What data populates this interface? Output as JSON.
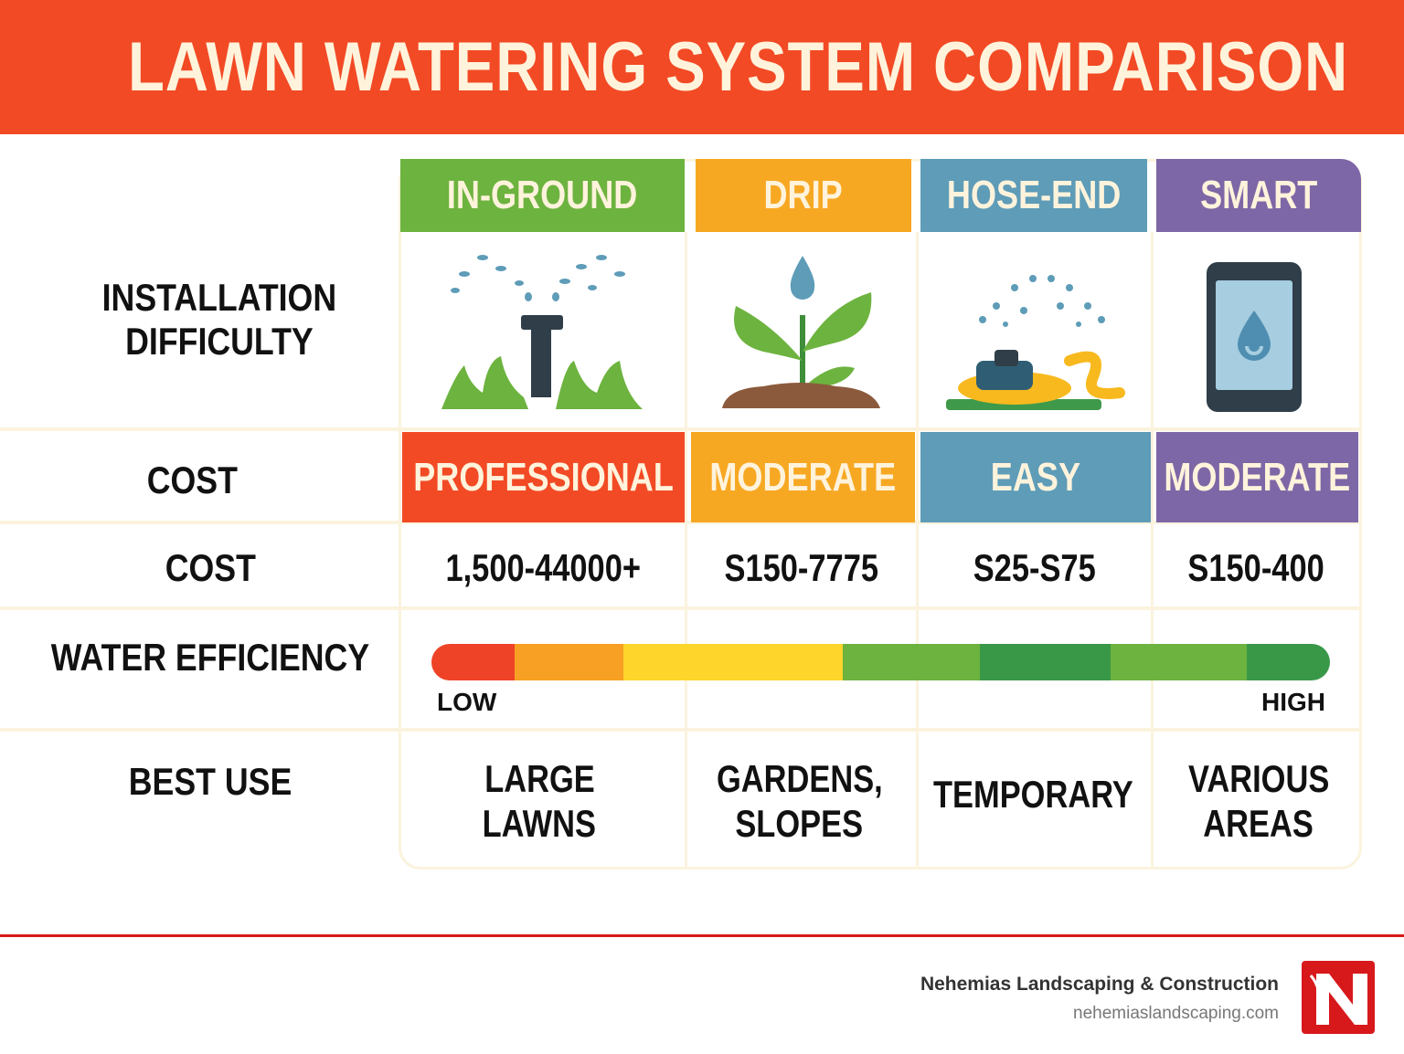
{
  "title": "LAWN WATERING SYSTEM COMPARISON",
  "columns": [
    {
      "label": "IN-GROUND",
      "color": "#6DB33F",
      "icon": "sprinkler-icon"
    },
    {
      "label": "DRIP",
      "color": "#F7A823",
      "icon": "plant-drip-icon"
    },
    {
      "label": "HOSE-END",
      "color": "#5E9CB8",
      "icon": "hose-sprinkler-icon"
    },
    {
      "label": "SMART",
      "color": "#7E67A6",
      "icon": "smartphone-water-icon"
    }
  ],
  "rows": {
    "difficulty_label": "INSTALLATION DIFFICULTY",
    "difficulty_label_line1": "INSTALLATION",
    "difficulty_label_line2": "DIFFICULTY",
    "difficulty": [
      {
        "value": "PROFESSIONAL",
        "color": "#F24A25"
      },
      {
        "value": "MODERATE",
        "color": "#F7A823"
      },
      {
        "value": "EASY",
        "color": "#5E9CB8"
      },
      {
        "value": "MODERATE",
        "color": "#7E67A6"
      }
    ],
    "cost_label_1": "COST",
    "cost_label_2": "COST",
    "cost": [
      "1,500-44000+",
      "S150-7775",
      "S25-S75",
      "S150-400"
    ],
    "efficiency_label": "WATER EFFICIENCY",
    "efficiency_low": "LOW",
    "efficiency_high": "HIGH",
    "efficiency_scale_colors": [
      "#EE4327",
      "#F7A023",
      "#FDD52B",
      "#6DB33F",
      "#389848",
      "#6DB33F",
      "#389848"
    ],
    "best_use_label": "BEST USE",
    "best_use": [
      {
        "line1": "LARGE",
        "line2": "LAWNS"
      },
      {
        "line1": "GARDENS,",
        "line2": "SLOPES"
      },
      {
        "line1": "TEMPORARY",
        "line2": ""
      },
      {
        "line1": "VARIOUS",
        "line2": "AREAS"
      }
    ]
  },
  "footer": {
    "company": "Nehemias Landscaping & Construction",
    "website": "nehemiaslandscaping.com",
    "logo_letter": "N",
    "accent": "#D7191C"
  }
}
